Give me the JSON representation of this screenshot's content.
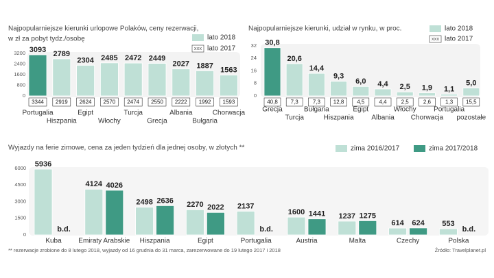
{
  "chart_data": [
    {
      "type": "bar",
      "title": [
        "Najpopularniejsze kierunki urlopowe Polaków, ceny rezerwacji,",
        "w zł za pobyt tydz./osobę"
      ],
      "categories": [
        "Portugalia",
        "Hiszpania",
        "Egipt",
        "Włochy",
        "Turcja",
        "Grecja",
        "Albania",
        "Bułgaria",
        "Chorwacja"
      ],
      "series": [
        {
          "name": "lato 2018",
          "mark": "bar",
          "color": "#bfe0d6",
          "colors": [
            "#3f9a84",
            "#bfe0d6",
            "#bfe0d6",
            "#bfe0d6",
            "#bfe0d6",
            "#bfe0d6",
            "#bfe0d6",
            "#bfe0d6",
            "#bfe0d6"
          ],
          "values": [
            3093,
            2789,
            2304,
            2485,
            2472,
            2449,
            2027,
            1887,
            1563
          ]
        },
        {
          "name": "lato 2017",
          "mark": "box",
          "legend_sample": "xxx",
          "color": "#ffffff",
          "values": [
            3344,
            2919,
            2624,
            2570,
            2474,
            2550,
            2222,
            1992,
            1593
          ]
        }
      ],
      "ylim": [
        0,
        3200
      ],
      "yticks": [
        0,
        800,
        1600,
        2400,
        3200
      ]
    },
    {
      "type": "bar",
      "title": [
        "Najpopularniejsze kierunki, udział w rynku, w proc."
      ],
      "categories": [
        "Grecja",
        "Turcja",
        "Bułgaria",
        "Hiszpania",
        "Egipt",
        "Albania",
        "Włochy",
        "Chorwacja",
        "Portugalia",
        "pozostałe"
      ],
      "series": [
        {
          "name": "lato 2018",
          "mark": "bar",
          "color": "#bfe0d6",
          "colors": [
            "#3f9a84",
            "#bfe0d6",
            "#bfe0d6",
            "#bfe0d6",
            "#bfe0d6",
            "#bfe0d6",
            "#bfe0d6",
            "#bfe0d6",
            "#bfe0d6",
            "#bfe0d6"
          ],
          "values": [
            30.8,
            20.6,
            14.4,
            9.3,
            6.0,
            4.4,
            2.5,
            1.9,
            1.1,
            5.0
          ],
          "value_labels": [
            "30,8",
            "20,6",
            "14,4",
            "9,3",
            "6,0",
            "4,4",
            "2,5",
            "1,9",
            "1,1",
            "5,0"
          ]
        },
        {
          "name": "lato 2017",
          "mark": "box",
          "legend_sample": "xxx",
          "color": "#ffffff",
          "values": [
            40.8,
            7.3,
            7.3,
            12.8,
            4.5,
            4.4,
            2.5,
            2.6,
            1.3,
            15.5
          ],
          "value_labels": [
            "40,8",
            "7,3",
            "7,3",
            "12,8",
            "4,5",
            "4,4",
            "2,5",
            "2,6",
            "1,3",
            "15,5"
          ]
        }
      ],
      "ylim": [
        0,
        32
      ],
      "yticks": [
        0,
        8,
        16,
        24,
        32
      ]
    },
    {
      "type": "bar",
      "title": [
        "Wyjazdy na ferie zimowe, cena za jeden tydzień dla jednej osoby, w złotych **"
      ],
      "categories": [
        "Kuba",
        "Emiraty Arabskie",
        "Hiszpania",
        "Egipt",
        "Portugalia",
        "Austria",
        "Malta",
        "Czechy",
        "Polska"
      ],
      "series": [
        {
          "name": "zima 2016/2017",
          "mark": "bar",
          "color": "#bfe0d6",
          "values": [
            5936,
            4124,
            2498,
            2270,
            2137,
            1600,
            1237,
            614,
            553
          ]
        },
        {
          "name": "zima 2017/2018",
          "mark": "bar",
          "color": "#3f9a84",
          "values": [
            null,
            4026,
            2636,
            2022,
            null,
            1441,
            1275,
            624,
            null
          ],
          "value_labels": [
            "b.d.",
            "4026",
            "2636",
            "2022",
            "b.d.",
            "1441",
            "1275",
            "624",
            "b.d."
          ]
        }
      ],
      "ylim": [
        0,
        6000
      ],
      "yticks": [
        0,
        1500,
        3000,
        4500,
        6000
      ]
    }
  ],
  "footnote": "** rezerwacje zrobione do 8 lutego 2018, wyjazdy od 16 grudnia do 31 marca, zarezerwowane do 19 lutego 2017 i 2018",
  "source": "Źródło: Travelplanet.pl"
}
